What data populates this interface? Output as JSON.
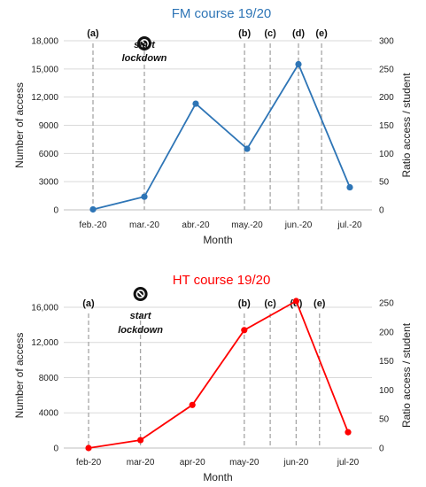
{
  "chart_data": [
    {
      "type": "line",
      "title": "FM course 19/20",
      "color": "#2e75b6",
      "categories": [
        "feb.-20",
        "mar.-20",
        "abr.-20",
        "may.-20",
        "jun.-20",
        "jul.-20"
      ],
      "series": [
        {
          "values": [
            50,
            1400,
            11300,
            6500,
            15500,
            2400
          ]
        }
      ],
      "xlabel": "Month",
      "ylabel": "Number of access",
      "ylabel_right": "Ratio access / student",
      "yticks": [
        "0",
        "3000",
        "6000",
        "9000",
        "12,000",
        "15,000",
        "18,000"
      ],
      "ylim": [
        0,
        18000
      ],
      "y2ticks": [
        "0",
        "50",
        "100",
        "150",
        "200",
        "250",
        "300"
      ],
      "y2lim": [
        0,
        300
      ],
      "grid": true,
      "events": [
        {
          "label": "(a)",
          "x": 0.0
        },
        {
          "label": "",
          "x": 1.0
        },
        {
          "label": "(b)",
          "x": 2.95
        },
        {
          "label": "(c)",
          "x": 3.45
        },
        {
          "label": "(d)",
          "x": 4.0
        },
        {
          "label": "(e)",
          "x": 4.45
        }
      ],
      "lockdown_text": [
        "start",
        "lockdown"
      ]
    },
    {
      "type": "line",
      "title": "HT course 19/20",
      "color": "#ff0000",
      "categories": [
        "feb-20",
        "mar-20",
        "apr-20",
        "may-20",
        "jun-20",
        "jul-20"
      ],
      "series": [
        {
          "values": [
            0,
            900,
            4900,
            13400,
            16700,
            1800
          ]
        }
      ],
      "xlabel": "Month",
      "ylabel": "Number of access",
      "ylabel_right": "Ratio access / student",
      "yticks": [
        "0",
        "4000",
        "8000",
        "12,000",
        "16,000"
      ],
      "ylim": [
        0,
        16500
      ],
      "y2ticks": [
        "0",
        "50",
        "100",
        "150",
        "200",
        "250"
      ],
      "y2lim": [
        0,
        250
      ],
      "grid": true,
      "events": [
        {
          "label": "(a)",
          "x": 0.0
        },
        {
          "label": "",
          "x": 1.0
        },
        {
          "label": "(b)",
          "x": 3.0
        },
        {
          "label": "(c)",
          "x": 3.5
        },
        {
          "label": "(d)",
          "x": 4.0
        },
        {
          "label": "(e)",
          "x": 4.45
        }
      ],
      "lockdown_text": [
        "start",
        "lockdown"
      ]
    }
  ]
}
